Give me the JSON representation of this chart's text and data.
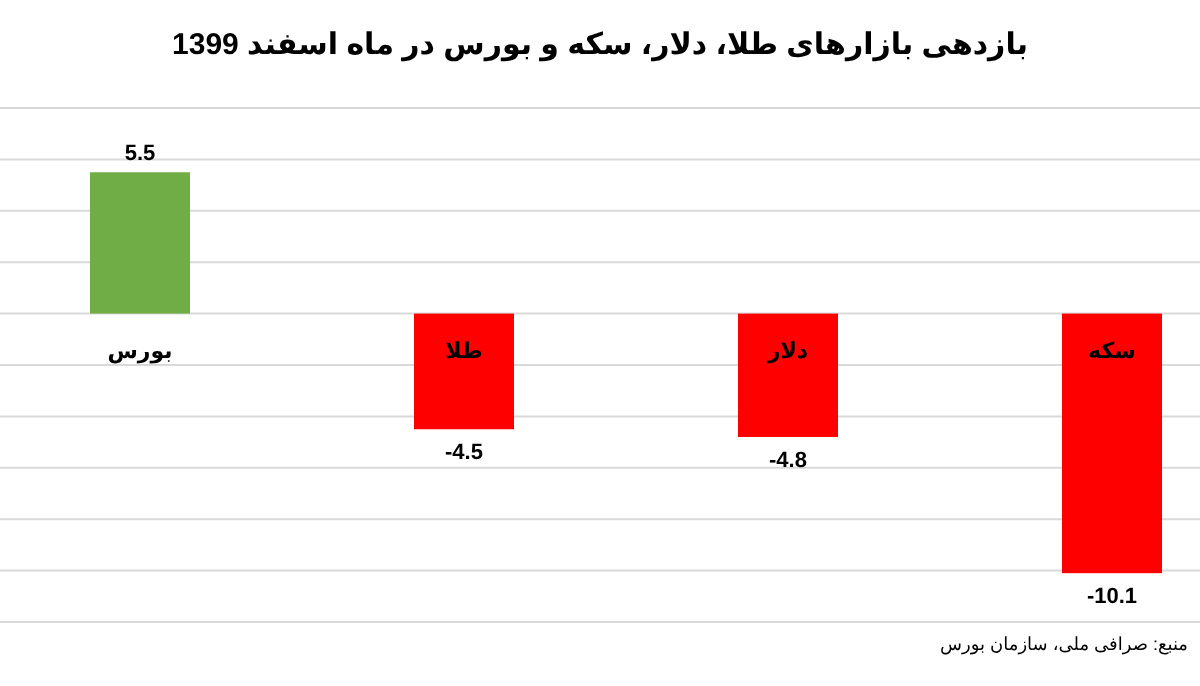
{
  "chart_data": {
    "type": "bar",
    "title": "بازدهی بازارهای طلا، دلار، سکه و بورس در ماه اسفند 1399",
    "categories": [
      "بورس",
      "طلا",
      "دلار",
      "سکه"
    ],
    "values": [
      5.5,
      -4.5,
      -4.8,
      -10.1
    ],
    "colors": [
      "#70ad47",
      "#ff0000",
      "#ff0000",
      "#ff0000"
    ],
    "ylim": [
      -12,
      8
    ],
    "yticks": [
      {
        "value": -12,
        "label": null
      },
      {
        "value": -10,
        "label": null
      },
      {
        "value": -8,
        "label": null
      },
      {
        "value": -6,
        "label": null
      },
      {
        "value": -4,
        "label": null
      },
      {
        "value": -2,
        "label": null
      },
      {
        "value": 0,
        "label": null
      },
      {
        "value": 2,
        "label": null
      },
      {
        "value": 4,
        "label": null
      },
      {
        "value": 6,
        "label": null
      },
      {
        "value": 8,
        "label": null
      }
    ],
    "grid": "y",
    "data_labels": true,
    "tick_labels": "x",
    "annotations": [
      "منبع: صرافی ملی، سازمان بورس"
    ]
  }
}
